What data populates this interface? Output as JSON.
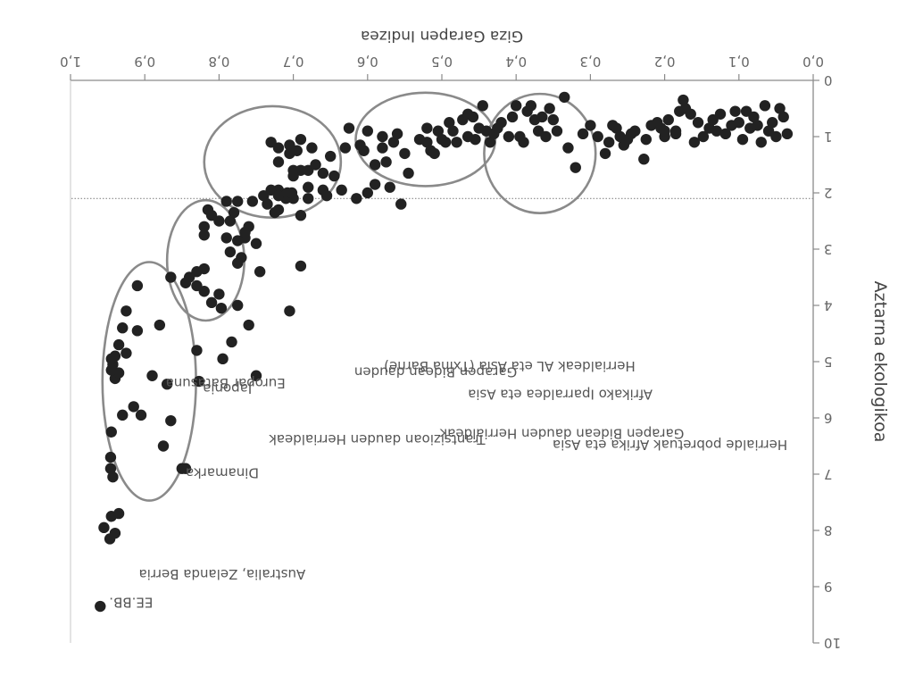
{
  "chart_data": {
    "type": "scatter",
    "xlabel": "Giza Garapen Indizea",
    "ylabel": "Aztarna ekologikoa",
    "xlim": [
      0.0,
      1.0
    ],
    "ylim": [
      0,
      10
    ],
    "x_ticks": [
      "0,0",
      "0,1",
      "0,2",
      "0,3",
      "0,4",
      "0,5",
      "0,6",
      "0,7",
      "0,8",
      "0,9",
      "1,0"
    ],
    "y_ticks": [
      "0",
      "1",
      "2",
      "3",
      "4",
      "5",
      "6",
      "7",
      "8",
      "9",
      "10"
    ],
    "reference_line_y": 2.1,
    "grid": false,
    "annotations": [
      {
        "id": "eebb",
        "text": "EE.BB.",
        "x": 0.948,
        "y": 9.2
      },
      {
        "id": "australia",
        "text": "Australia, Zelanda Berria",
        "x": 0.908,
        "y": 8.7
      },
      {
        "id": "europar",
        "text": "Europar Batasuna",
        "x": 0.872,
        "y": 5.3
      },
      {
        "id": "danimarka",
        "text": "Dinamarka",
        "x": 0.845,
        "y": 6.9
      },
      {
        "id": "japonia",
        "text": "Japonia",
        "x": 0.822,
        "y": 5.4
      },
      {
        "id": "trantsizio",
        "text": "Trantsizioan dauden Herrialdeak",
        "x": 0.733,
        "y": 6.3
      },
      {
        "id": "garapen-bidean-1",
        "text": "Garapen Bidean dauden",
        "x": 0.618,
        "y": 5.1
      },
      {
        "id": "herrialdeak-al",
        "text": "Herrialdeak AL eta Asia (Txina Barne)",
        "x": 0.578,
        "y": 5.0
      },
      {
        "id": "garapen-bidean-2",
        "text": "Garapen Bidean dauden Herrialdeak",
        "x": 0.503,
        "y": 6.2
      },
      {
        "id": "afrikako",
        "text": "Afrikako Iparraldea eta Asia",
        "x": 0.465,
        "y": 5.5
      },
      {
        "id": "pobretuak",
        "text": "Herrialde pobretuak Afrika eta Asia",
        "x": 0.351,
        "y": 6.4
      }
    ],
    "clusters": [
      {
        "name": "poor",
        "cx": 0.368,
        "cy": 1.3,
        "rx": 0.075,
        "ry": 1.06
      },
      {
        "name": "developing",
        "cx": 0.522,
        "cy": 1.05,
        "rx": 0.094,
        "ry": 0.83
      },
      {
        "name": "transition",
        "cx": 0.728,
        "cy": 1.45,
        "rx": 0.092,
        "ry": 0.99
      },
      {
        "name": "japan",
        "cx": 0.818,
        "cy": 3.2,
        "rx": 0.052,
        "ry": 1.07
      },
      {
        "name": "eu",
        "cx": 0.894,
        "cy": 5.35,
        "rx": 0.063,
        "ry": 2.12
      }
    ],
    "points": [
      [
        0.96,
        9.35
      ],
      [
        0.955,
        7.95
      ],
      [
        0.945,
        7.75
      ],
      [
        0.935,
        7.7
      ],
      [
        0.94,
        8.05
      ],
      [
        0.947,
        8.15
      ],
      [
        0.943,
        7.05
      ],
      [
        0.946,
        6.9
      ],
      [
        0.946,
        6.7
      ],
      [
        0.945,
        6.25
      ],
      [
        0.93,
        5.95
      ],
      [
        0.925,
        4.85
      ],
      [
        0.94,
        5.3
      ],
      [
        0.943,
        5.05
      ],
      [
        0.945,
        4.95
      ],
      [
        0.94,
        4.9
      ],
      [
        0.935,
        4.7
      ],
      [
        0.935,
        5.2
      ],
      [
        0.945,
        5.15
      ],
      [
        0.93,
        4.4
      ],
      [
        0.925,
        4.1
      ],
      [
        0.915,
        5.8
      ],
      [
        0.905,
        5.95
      ],
      [
        0.91,
        4.45
      ],
      [
        0.91,
        3.65
      ],
      [
        0.89,
        5.25
      ],
      [
        0.88,
        4.35
      ],
      [
        0.875,
        6.5
      ],
      [
        0.87,
        5.4
      ],
      [
        0.865,
        6.05
      ],
      [
        0.85,
        6.9
      ],
      [
        0.845,
        6.9
      ],
      [
        0.827,
        5.35
      ],
      [
        0.795,
        4.95
      ],
      [
        0.797,
        4.05
      ],
      [
        0.783,
        4.65
      ],
      [
        0.775,
        4.0
      ],
      [
        0.77,
        3.15
      ],
      [
        0.75,
        5.25
      ],
      [
        0.83,
        4.8
      ],
      [
        0.82,
        3.75
      ],
      [
        0.81,
        3.95
      ],
      [
        0.82,
        3.35
      ],
      [
        0.82,
        2.75
      ],
      [
        0.83,
        3.4
      ],
      [
        0.83,
        3.65
      ],
      [
        0.84,
        3.5
      ],
      [
        0.845,
        3.6
      ],
      [
        0.865,
        3.5
      ],
      [
        0.775,
        3.25
      ],
      [
        0.79,
        2.8
      ],
      [
        0.8,
        3.8
      ],
      [
        0.81,
        2.4
      ],
      [
        0.815,
        2.3
      ],
      [
        0.82,
        2.6
      ],
      [
        0.8,
        2.5
      ],
      [
        0.785,
        3.05
      ],
      [
        0.79,
        2.15
      ],
      [
        0.785,
        2.5
      ],
      [
        0.78,
        2.35
      ],
      [
        0.775,
        2.15
      ],
      [
        0.76,
        2.6
      ],
      [
        0.765,
        2.8
      ],
      [
        0.74,
        2.05
      ],
      [
        0.76,
        4.35
      ],
      [
        0.775,
        2.85
      ],
      [
        0.75,
        2.9
      ],
      [
        0.745,
        3.4
      ],
      [
        0.725,
        2.35
      ],
      [
        0.72,
        1.95
      ],
      [
        0.705,
        4.1
      ],
      [
        0.68,
        2.1
      ],
      [
        0.69,
        2.4
      ],
      [
        0.69,
        3.3
      ],
      [
        0.7,
        2.1
      ],
      [
        0.71,
        2.1
      ],
      [
        0.72,
        2.3
      ],
      [
        0.73,
        1.95
      ],
      [
        0.735,
        2.2
      ],
      [
        0.755,
        2.15
      ],
      [
        0.765,
        2.7
      ],
      [
        0.72,
        2.05
      ],
      [
        0.708,
        2.0
      ],
      [
        0.7,
        1.6
      ],
      [
        0.68,
        1.9
      ],
      [
        0.68,
        1.6
      ],
      [
        0.69,
        1.6
      ],
      [
        0.7,
        1.7
      ],
      [
        0.702,
        2.0
      ],
      [
        0.705,
        1.15
      ],
      [
        0.705,
        1.3
      ],
      [
        0.72,
        1.2
      ],
      [
        0.72,
        1.45
      ],
      [
        0.73,
        1.1
      ],
      [
        0.695,
        1.25
      ],
      [
        0.69,
        1.05
      ],
      [
        0.675,
        1.2
      ],
      [
        0.67,
        1.5
      ],
      [
        0.66,
        1.95
      ],
      [
        0.655,
        2.05
      ],
      [
        0.66,
        1.65
      ],
      [
        0.65,
        1.35
      ],
      [
        0.645,
        1.7
      ],
      [
        0.635,
        1.95
      ],
      [
        0.63,
        1.2
      ],
      [
        0.625,
        0.85
      ],
      [
        0.615,
        2.1
      ],
      [
        0.61,
        1.15
      ],
      [
        0.605,
        1.25
      ],
      [
        0.6,
        0.9
      ],
      [
        0.6,
        2.0
      ],
      [
        0.59,
        1.85
      ],
      [
        0.59,
        1.5
      ],
      [
        0.58,
        1.2
      ],
      [
        0.58,
        1.0
      ],
      [
        0.575,
        1.45
      ],
      [
        0.57,
        1.9
      ],
      [
        0.565,
        1.1
      ],
      [
        0.56,
        0.95
      ],
      [
        0.555,
        2.2
      ],
      [
        0.55,
        1.3
      ],
      [
        0.545,
        1.65
      ],
      [
        0.53,
        1.05
      ],
      [
        0.52,
        1.1
      ],
      [
        0.52,
        0.85
      ],
      [
        0.515,
        1.25
      ],
      [
        0.51,
        1.3
      ],
      [
        0.505,
        0.9
      ],
      [
        0.5,
        1.05
      ],
      [
        0.495,
        1.1
      ],
      [
        0.49,
        0.75
      ],
      [
        0.485,
        0.9
      ],
      [
        0.48,
        1.1
      ],
      [
        0.472,
        0.7
      ],
      [
        0.465,
        1.0
      ],
      [
        0.465,
        0.6
      ],
      [
        0.458,
        0.65
      ],
      [
        0.455,
        1.05
      ],
      [
        0.45,
        0.85
      ],
      [
        0.445,
        0.45
      ],
      [
        0.44,
        0.9
      ],
      [
        0.435,
        1.1
      ],
      [
        0.43,
        0.95
      ],
      [
        0.425,
        0.85
      ],
      [
        0.42,
        0.75
      ],
      [
        0.41,
        1.0
      ],
      [
        0.405,
        0.65
      ],
      [
        0.4,
        0.45
      ],
      [
        0.395,
        1.0
      ],
      [
        0.39,
        1.1
      ],
      [
        0.385,
        0.55
      ],
      [
        0.38,
        0.45
      ],
      [
        0.375,
        0.7
      ],
      [
        0.37,
        0.9
      ],
      [
        0.365,
        0.65
      ],
      [
        0.36,
        1.0
      ],
      [
        0.355,
        0.5
      ],
      [
        0.35,
        0.7
      ],
      [
        0.345,
        0.9
      ],
      [
        0.335,
        0.3
      ],
      [
        0.33,
        1.2
      ],
      [
        0.32,
        1.55
      ],
      [
        0.31,
        0.95
      ],
      [
        0.3,
        0.8
      ],
      [
        0.29,
        1.0
      ],
      [
        0.28,
        1.3
      ],
      [
        0.275,
        1.1
      ],
      [
        0.27,
        0.8
      ],
      [
        0.265,
        0.85
      ],
      [
        0.26,
        1.0
      ],
      [
        0.255,
        1.15
      ],
      [
        0.25,
        1.05
      ],
      [
        0.245,
        0.95
      ],
      [
        0.24,
        0.9
      ],
      [
        0.228,
        1.4
      ],
      [
        0.225,
        1.05
      ],
      [
        0.218,
        0.8
      ],
      [
        0.21,
        0.75
      ],
      [
        0.205,
        0.85
      ],
      [
        0.2,
        1.0
      ],
      [
        0.2,
        0.9
      ],
      [
        0.195,
        0.7
      ],
      [
        0.185,
        0.9
      ],
      [
        0.185,
        0.95
      ],
      [
        0.18,
        0.55
      ],
      [
        0.175,
        0.35
      ],
      [
        0.172,
        0.5
      ],
      [
        0.165,
        0.6
      ],
      [
        0.16,
        1.1
      ],
      [
        0.155,
        0.75
      ],
      [
        0.148,
        1.0
      ],
      [
        0.14,
        0.85
      ],
      [
        0.135,
        0.7
      ],
      [
        0.13,
        0.9
      ],
      [
        0.125,
        0.6
      ],
      [
        0.118,
        0.95
      ],
      [
        0.11,
        0.8
      ],
      [
        0.105,
        0.55
      ],
      [
        0.1,
        0.75
      ],
      [
        0.095,
        1.05
      ],
      [
        0.09,
        0.55
      ],
      [
        0.085,
        0.85
      ],
      [
        0.08,
        0.65
      ],
      [
        0.075,
        0.8
      ],
      [
        0.07,
        1.1
      ],
      [
        0.065,
        0.45
      ],
      [
        0.06,
        0.9
      ],
      [
        0.055,
        0.75
      ],
      [
        0.05,
        1.0
      ],
      [
        0.045,
        0.5
      ],
      [
        0.04,
        0.65
      ],
      [
        0.035,
        0.95
      ]
    ]
  }
}
